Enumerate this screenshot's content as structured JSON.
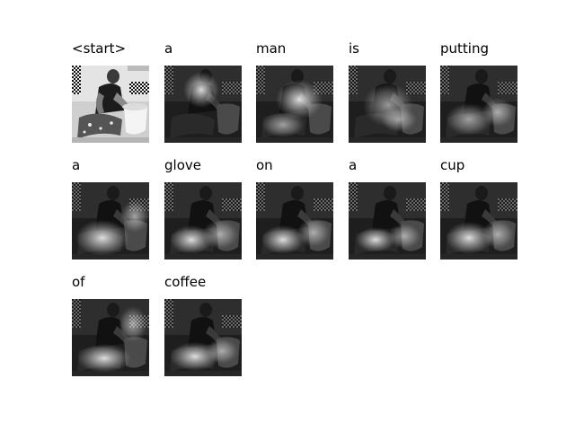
{
  "caption_words": [
    {
      "word": "<start>",
      "attention_focus": "none (original image)"
    },
    {
      "word": "a",
      "attention_focus": "head"
    },
    {
      "word": "man",
      "attention_focus": "torso and hands"
    },
    {
      "word": "is",
      "attention_focus": "torso"
    },
    {
      "word": "putting",
      "attention_focus": "hands and sink"
    },
    {
      "word": "a",
      "attention_focus": "lower body"
    },
    {
      "word": "glove",
      "attention_focus": "hands and sink"
    },
    {
      "word": "on",
      "attention_focus": "hands and sink"
    },
    {
      "word": "a",
      "attention_focus": "sink"
    },
    {
      "word": "cup",
      "attention_focus": "sink"
    },
    {
      "word": "of",
      "attention_focus": "lower image"
    },
    {
      "word": "coffee",
      "attention_focus": "lower image"
    }
  ],
  "colors": {
    "background": "#ffffff",
    "text": "#000000"
  }
}
